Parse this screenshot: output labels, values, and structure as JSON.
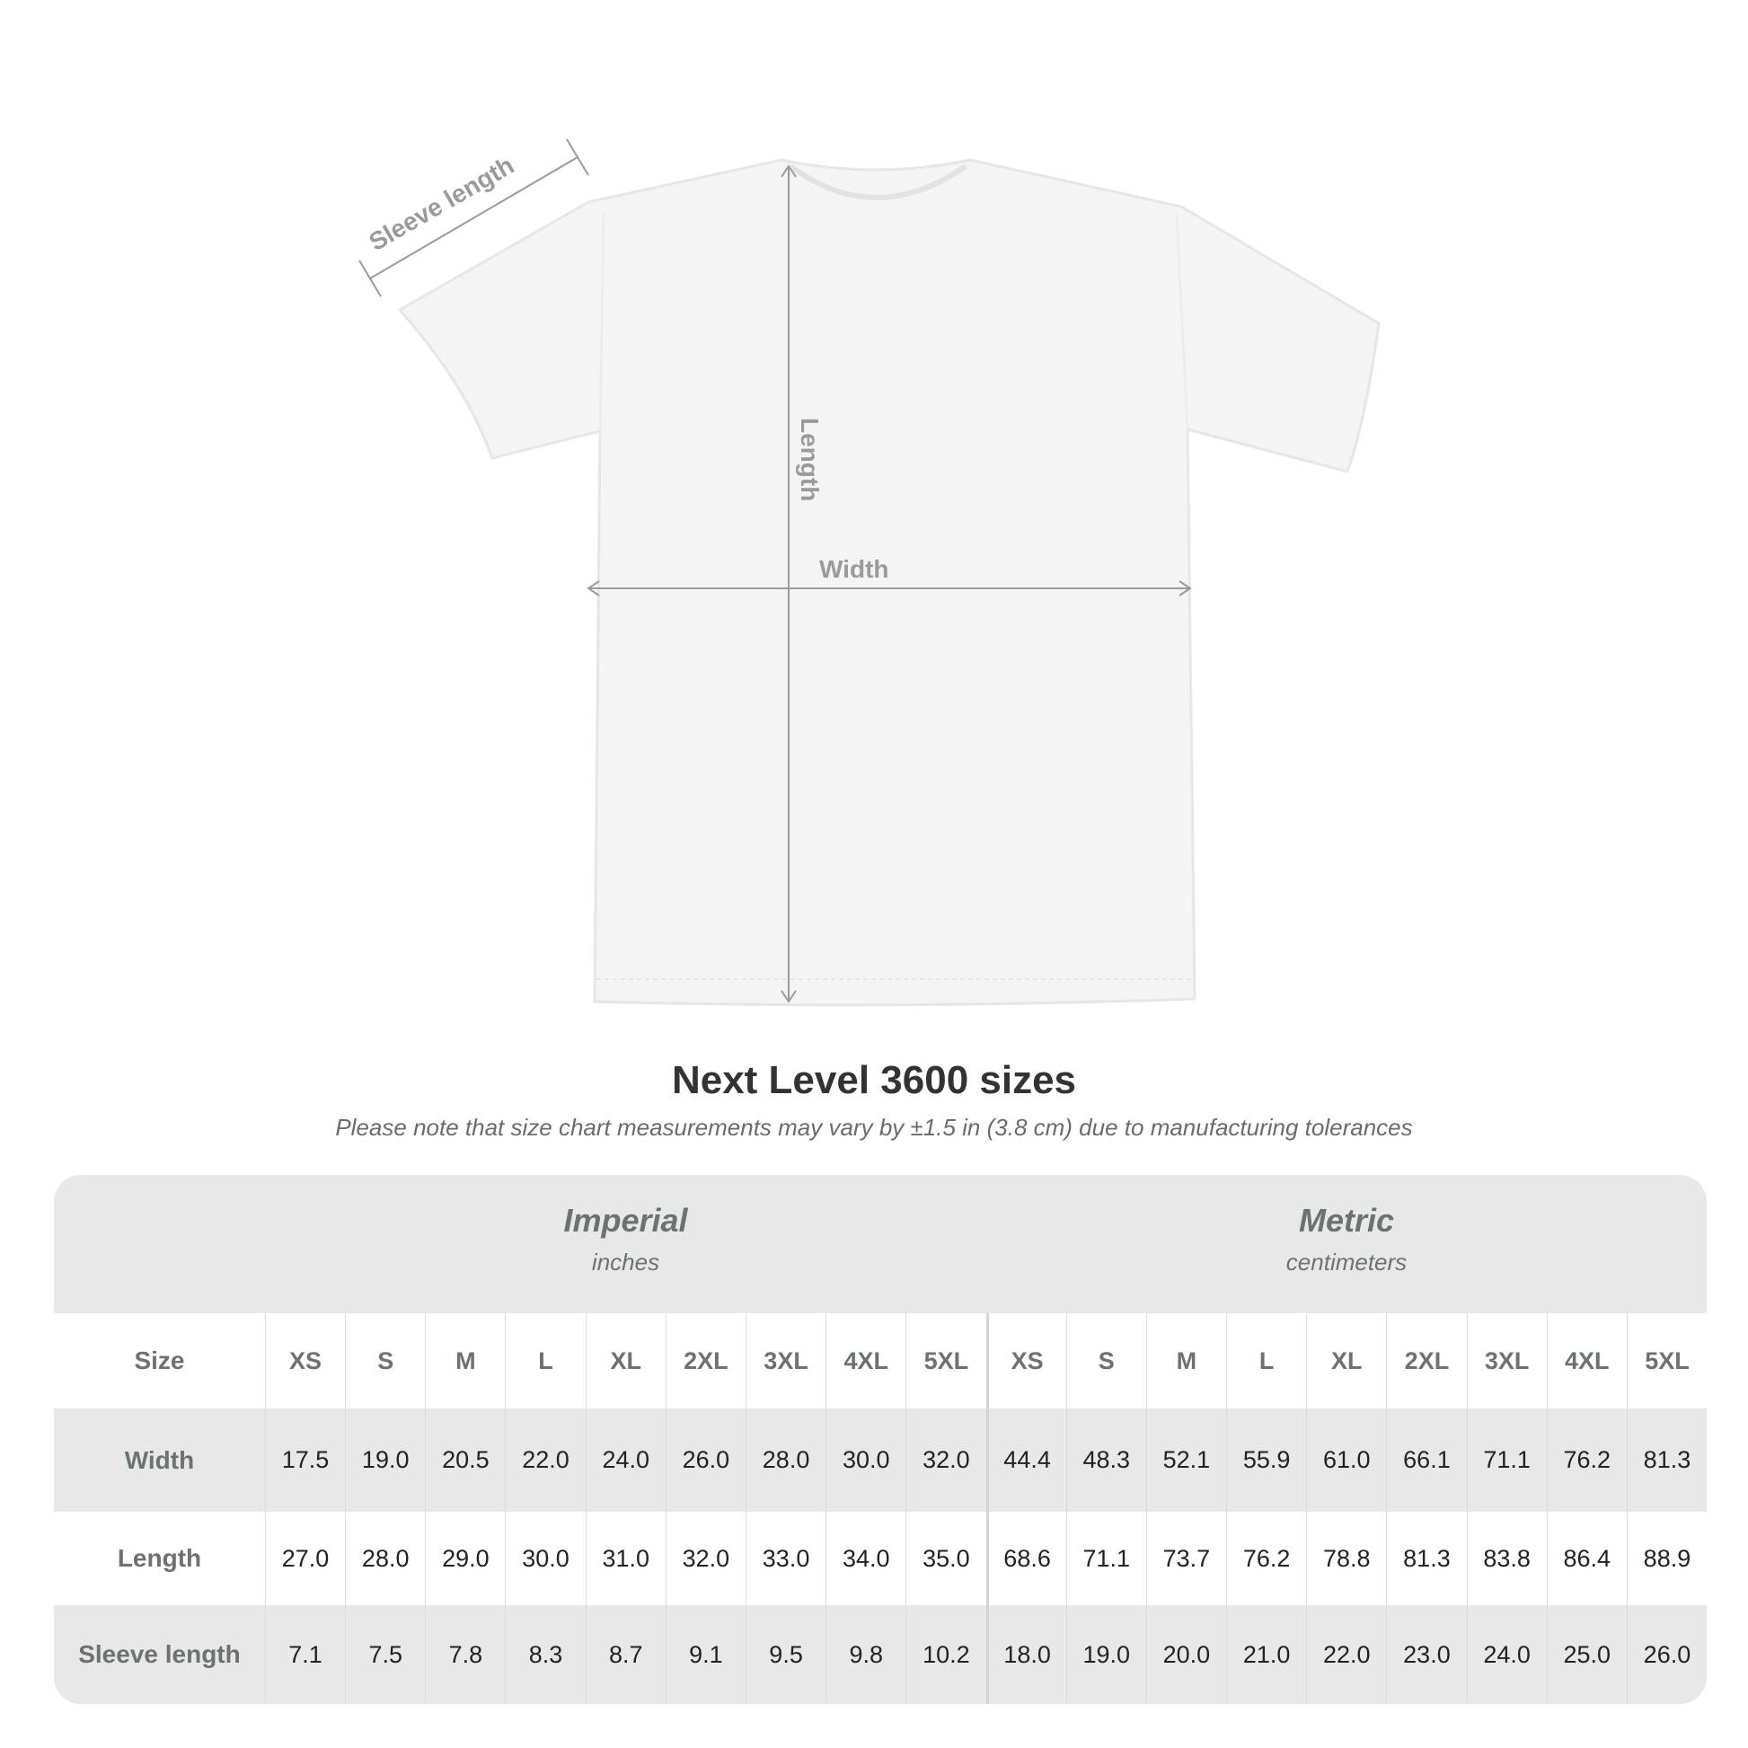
{
  "diagram": {
    "labels": {
      "sleeve": "Sleeve length",
      "length": "Length",
      "width": "Width"
    }
  },
  "title": "Next Level 3600 sizes",
  "note": "Please note that size chart measurements may vary by ±1.5 in (3.8 cm) due to manufacturing tolerances",
  "chart_data": {
    "type": "table",
    "groups": [
      {
        "name": "Imperial",
        "unit": "inches"
      },
      {
        "name": "Metric",
        "unit": "centimeters"
      }
    ],
    "size_label": "Size",
    "sizes": [
      "XS",
      "S",
      "M",
      "L",
      "XL",
      "2XL",
      "3XL",
      "4XL",
      "5XL"
    ],
    "rows": [
      {
        "label": "Width",
        "imperial": [
          "17.5",
          "19.0",
          "20.5",
          "22.0",
          "24.0",
          "26.0",
          "28.0",
          "30.0",
          "32.0"
        ],
        "metric": [
          "44.4",
          "48.3",
          "52.1",
          "55.9",
          "61.0",
          "66.1",
          "71.1",
          "76.2",
          "81.3"
        ]
      },
      {
        "label": "Length",
        "imperial": [
          "27.0",
          "28.0",
          "29.0",
          "30.0",
          "31.0",
          "32.0",
          "33.0",
          "34.0",
          "35.0"
        ],
        "metric": [
          "68.6",
          "71.1",
          "73.7",
          "76.2",
          "78.8",
          "81.3",
          "83.8",
          "86.4",
          "88.9"
        ]
      },
      {
        "label": "Sleeve length",
        "imperial": [
          "7.1",
          "7.5",
          "7.8",
          "8.3",
          "8.7",
          "9.1",
          "9.5",
          "9.8",
          "10.2"
        ],
        "metric": [
          "18.0",
          "19.0",
          "20.0",
          "21.0",
          "22.0",
          "23.0",
          "24.0",
          "25.0",
          "26.0"
        ]
      }
    ]
  }
}
